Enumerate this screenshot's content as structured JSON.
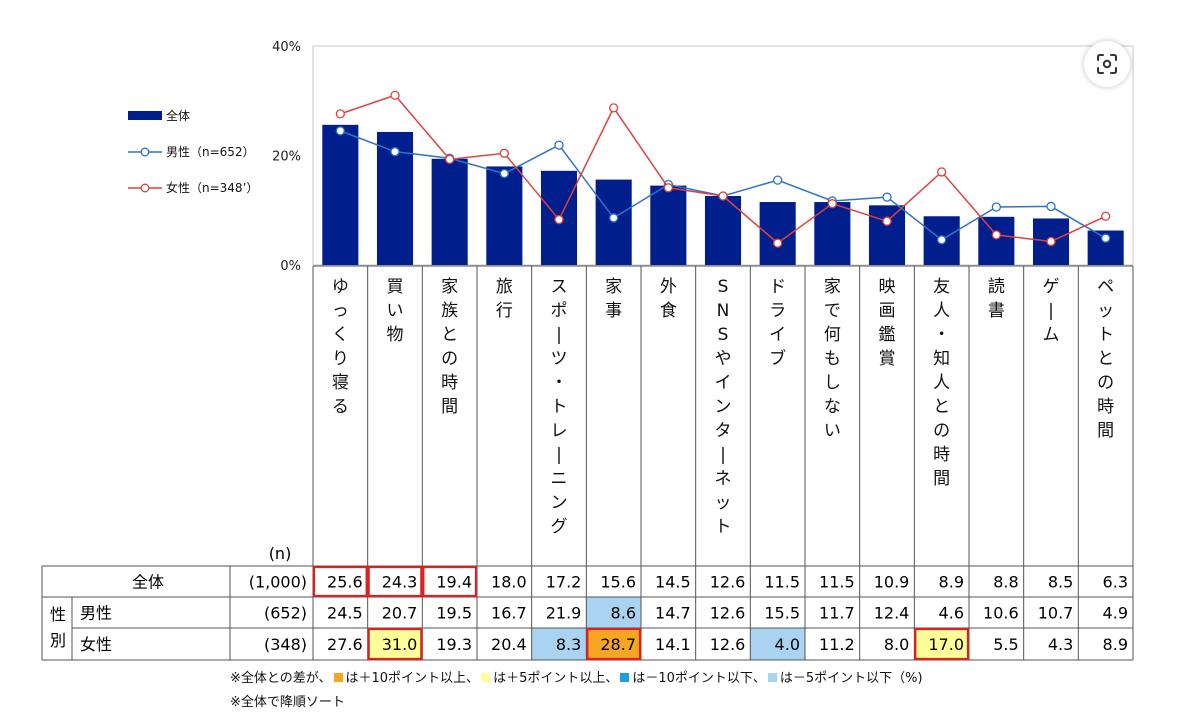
{
  "chart_data": {
    "type": "bar",
    "categories": [
      "ゆっくり寝る",
      "買い物",
      "家族との時間",
      "旅行",
      "スポーツ・トレーニング",
      "家事",
      "外食",
      "SNSやインターネット",
      "ドライブ",
      "家で何もしない",
      "映画鑑賞",
      "友人・知人との時間",
      "読書",
      "ゲーム",
      "ペットとの時間"
    ],
    "ylim": [
      0,
      40
    ],
    "yticks": [
      "0%",
      "20%",
      "40%"
    ],
    "ytick_values": [
      0,
      20,
      40
    ],
    "series": [
      {
        "name": "全体",
        "kind": "bar",
        "color": "#001f8c",
        "values": [
          25.6,
          24.3,
          19.4,
          18.0,
          17.2,
          15.6,
          14.5,
          12.6,
          11.5,
          11.5,
          10.9,
          8.9,
          8.8,
          8.5,
          6.3
        ]
      },
      {
        "name": "男性（n=652）",
        "kind": "line",
        "color": "#2f72c7",
        "values": [
          24.5,
          20.7,
          19.5,
          16.7,
          21.9,
          8.6,
          14.7,
          12.6,
          15.5,
          11.7,
          12.4,
          4.6,
          10.6,
          10.7,
          4.9
        ]
      },
      {
        "name": "女性（n=348’）",
        "kind": "line",
        "color": "#e04040",
        "values": [
          27.6,
          31.0,
          19.3,
          20.4,
          8.3,
          28.7,
          14.1,
          12.6,
          4.0,
          11.2,
          8.0,
          17.0,
          5.5,
          4.3,
          8.9
        ]
      }
    ],
    "legend": "left",
    "grid": false
  },
  "table": {
    "n_header": "(n)",
    "group_label": "性別",
    "rows": [
      {
        "label": "全体",
        "n": "(1,000)",
        "values": [
          "25.6",
          "24.3",
          "19.4",
          "18.0",
          "17.2",
          "15.6",
          "14.5",
          "12.6",
          "11.5",
          "11.5",
          "10.9",
          "8.9",
          "8.8",
          "8.5",
          "6.3"
        ],
        "fills": [
          "",
          "",
          "",
          "",
          "",
          "",
          "",
          "",
          "",
          "",
          "",
          "",
          "",
          "",
          ""
        ],
        "borders": [
          1,
          1,
          1,
          0,
          0,
          0,
          0,
          0,
          0,
          0,
          0,
          0,
          0,
          0,
          0
        ]
      },
      {
        "label": "男性",
        "n": "(652)",
        "values": [
          "24.5",
          "20.7",
          "19.5",
          "16.7",
          "21.9",
          "8.6",
          "14.7",
          "12.6",
          "15.5",
          "11.7",
          "12.4",
          "4.6",
          "10.6",
          "10.7",
          "4.9"
        ],
        "fills": [
          "",
          "",
          "",
          "",
          "",
          "#a9d3f0",
          "",
          "",
          "",
          "",
          "",
          "",
          "",
          "",
          ""
        ],
        "borders": [
          0,
          0,
          0,
          0,
          0,
          0,
          0,
          0,
          0,
          0,
          0,
          0,
          0,
          0,
          0
        ]
      },
      {
        "label": "女性",
        "n": "(348)",
        "values": [
          "27.6",
          "31.0",
          "19.3",
          "20.4",
          "8.3",
          "28.7",
          "14.1",
          "12.6",
          "4.0",
          "11.2",
          "8.0",
          "17.0",
          "5.5",
          "4.3",
          "8.9"
        ],
        "fills": [
          "",
          "#ffff99",
          "",
          "",
          "#a9d3f0",
          "#f5a623",
          "",
          "",
          "#a9d3f0",
          "",
          "",
          "#ffff99",
          "",
          "",
          ""
        ],
        "borders": [
          0,
          1,
          0,
          0,
          0,
          1,
          0,
          0,
          0,
          0,
          0,
          1,
          0,
          0,
          0
        ]
      }
    ]
  },
  "notes": {
    "line1_a": "※全体との差が、",
    "line1_b": "は＋10ポイント以上、",
    "line1_c": "は＋5ポイント以上、",
    "line1_d": "は－10ポイント以下、",
    "line1_e": "は－5ポイント以下（%)",
    "line2": "※全体で降順ソート"
  },
  "colors": {
    "plus10": "#f5a623",
    "plus5": "#ffff99",
    "minus10": "#1aa0e0",
    "minus5": "#a9d3f0",
    "highlight_border": "#e02020"
  },
  "icons": {
    "screenshot_button": "screenshot-icon"
  }
}
